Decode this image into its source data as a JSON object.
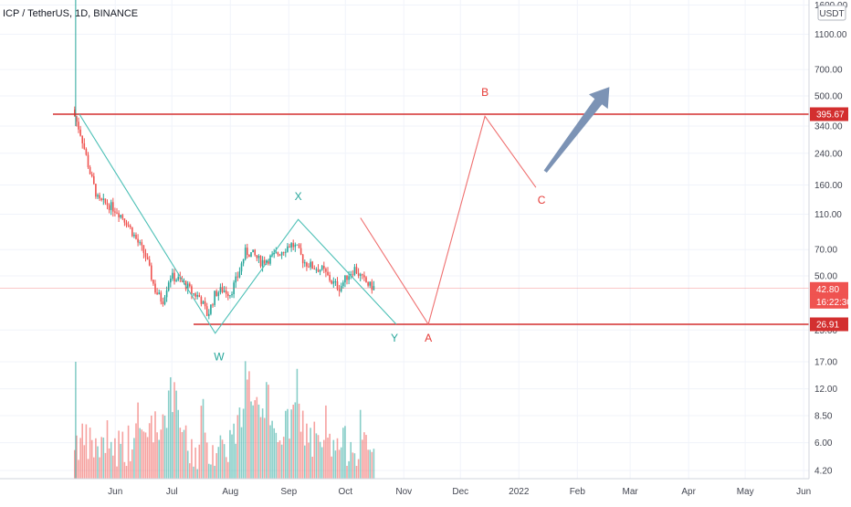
{
  "header": {
    "symbol_line": "ICP / TetherUS, 1D, BINANCE"
  },
  "currency_badge": "USDT",
  "colors": {
    "up": "#26a69a",
    "down": "#ef5350",
    "level": "#d32f2f",
    "arrow": "#7c93b5",
    "wave_teal": "#4dc0b6",
    "wave_red": "#ef7070",
    "label_teal": "#26a69a",
    "label_red": "#e53935"
  },
  "chart_data": {
    "type": "candlestick",
    "scale": "log",
    "y_ticks": [
      "1600.00",
      "1100.00",
      "700.00",
      "500.00",
      "340.00",
      "240.00",
      "160.00",
      "110.00",
      "70.00",
      "50.00",
      "25.00",
      "17.00",
      "12.00",
      "8.50",
      "6.00",
      "4.20"
    ],
    "x_ticks": [
      "Jun",
      "Jul",
      "Aug",
      "Sep",
      "Oct",
      "Nov",
      "Dec",
      "2022",
      "Feb",
      "Mar",
      "Apr",
      "May",
      "Jun"
    ],
    "price_tags": [
      {
        "label": "395.67",
        "value": 395.67,
        "role": "horizontal-level"
      },
      {
        "label": "42.80",
        "value": 42.8,
        "role": "last-price"
      },
      {
        "label": "16:22:30",
        "role": "countdown"
      },
      {
        "label": "26.91",
        "value": 26.91,
        "role": "horizontal-level"
      }
    ],
    "wave_labels": [
      {
        "text": "W",
        "color": "teal"
      },
      {
        "text": "X",
        "color": "teal"
      },
      {
        "text": "Y",
        "color": "teal"
      },
      {
        "text": "A",
        "color": "red"
      },
      {
        "text": "B",
        "color": "red"
      },
      {
        "text": "C",
        "color": "red"
      }
    ],
    "price_path": [
      [
        "2021-05-10",
        400
      ],
      [
        "2021-05-14",
        300
      ],
      [
        "2021-05-19",
        180
      ],
      [
        "2021-05-23",
        130
      ],
      [
        "2021-05-28",
        125
      ],
      [
        "2021-06-02",
        115
      ],
      [
        "2021-06-07",
        100
      ],
      [
        "2021-06-12",
        80
      ],
      [
        "2021-06-17",
        65
      ],
      [
        "2021-06-22",
        42
      ],
      [
        "2021-06-26",
        36
      ],
      [
        "2021-06-30",
        50
      ],
      [
        "2021-07-04",
        48
      ],
      [
        "2021-07-08",
        45
      ],
      [
        "2021-07-12",
        40
      ],
      [
        "2021-07-16",
        38
      ],
      [
        "2021-07-20",
        30
      ],
      [
        "2021-07-24",
        40
      ],
      [
        "2021-07-28",
        42
      ],
      [
        "2021-08-01",
        40
      ],
      [
        "2021-08-05",
        50
      ],
      [
        "2021-08-09",
        68
      ],
      [
        "2021-08-13",
        66
      ],
      [
        "2021-08-17",
        60
      ],
      [
        "2021-08-21",
        62
      ],
      [
        "2021-08-25",
        65
      ],
      [
        "2021-08-29",
        70
      ],
      [
        "2021-09-02",
        75
      ],
      [
        "2021-09-05",
        72
      ],
      [
        "2021-09-09",
        60
      ],
      [
        "2021-09-14",
        56
      ],
      [
        "2021-09-19",
        54
      ],
      [
        "2021-09-24",
        46
      ],
      [
        "2021-09-28",
        43
      ],
      [
        "2021-10-02",
        50
      ],
      [
        "2021-10-06",
        55
      ],
      [
        "2021-10-10",
        48
      ],
      [
        "2021-10-14",
        44
      ],
      [
        "2021-10-17",
        42.8
      ]
    ],
    "volume_path": [
      [
        "2021-05-10",
        6.2
      ],
      [
        "2021-05-25",
        5.5
      ],
      [
        "2021-06-10",
        6.0
      ],
      [
        "2021-06-25",
        7.5
      ],
      [
        "2021-07-01",
        11.5
      ],
      [
        "2021-07-10",
        5.2
      ],
      [
        "2021-07-20",
        5.5
      ],
      [
        "2021-07-30",
        5.8
      ],
      [
        "2021-08-05",
        7.0
      ],
      [
        "2021-08-10",
        14.0
      ],
      [
        "2021-08-20",
        6.5
      ],
      [
        "2021-08-30",
        7.0
      ],
      [
        "2021-09-05",
        9.0
      ],
      [
        "2021-09-15",
        5.5
      ],
      [
        "2021-09-25",
        5.5
      ],
      [
        "2021-10-05",
        6.0
      ],
      [
        "2021-10-17",
        5.0
      ]
    ],
    "horizontal_levels": [
      395.67,
      26.91
    ],
    "teal_wave": [
      [
        "2021-05-13",
        395
      ],
      [
        "2021-07-24",
        24
      ],
      [
        "2021-09-06",
        103
      ],
      [
        "2021-10-28",
        26.91
      ]
    ],
    "red_projection": [
      [
        "2021-10-09",
        105
      ],
      [
        "2021-11-14",
        26.91
      ],
      [
        "2021-12-14",
        385
      ],
      [
        "2022-01-10",
        155
      ]
    ],
    "arrow": {
      "from": [
        "2022-01-15",
        190
      ],
      "to": [
        "2022-02-18",
        560
      ]
    }
  }
}
